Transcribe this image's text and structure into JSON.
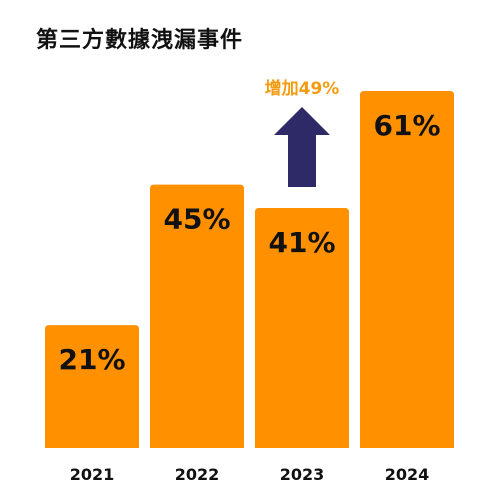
{
  "title": "第三方數據洩漏事件",
  "chart_data": {
    "type": "bar",
    "title": "第三方數據洩漏事件",
    "categories": [
      "2021",
      "2022",
      "2023",
      "2024"
    ],
    "values": [
      21,
      45,
      41,
      61
    ],
    "value_labels": [
      "21%",
      "45%",
      "41%",
      "61%"
    ],
    "unit": "%",
    "ylim": [
      0,
      61
    ],
    "grid": false,
    "legend": "none",
    "annotation": {
      "text": "增加49%",
      "arrow": "up",
      "target_category": "2023"
    },
    "colors": {
      "bar": "#FF9100",
      "arrow": "#2E2A68",
      "annotation_text": "#F39C12",
      "text": "#111111"
    }
  }
}
